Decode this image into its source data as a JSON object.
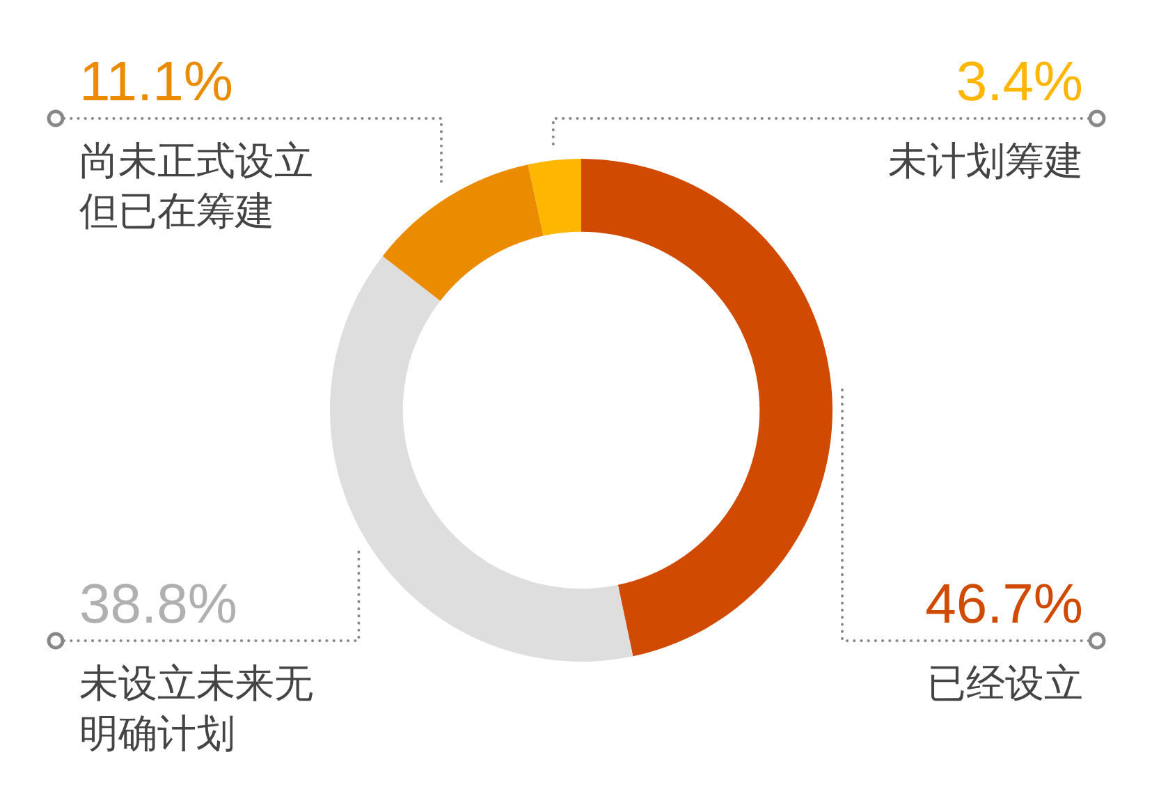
{
  "chart_data": {
    "type": "donut",
    "categories": [
      "已经设立",
      "未设立未来无明确计划",
      "尚未正式设立但已在筹建",
      "未计划筹建"
    ],
    "values": [
      46.7,
      38.8,
      11.1,
      3.4
    ],
    "colors": [
      "#d04a02",
      "#dedede",
      "#eb8c00",
      "#ffb600"
    ],
    "value_labels": [
      "46.7%",
      "38.8%",
      "11.1%",
      "3.4%"
    ],
    "legend": false
  }
}
